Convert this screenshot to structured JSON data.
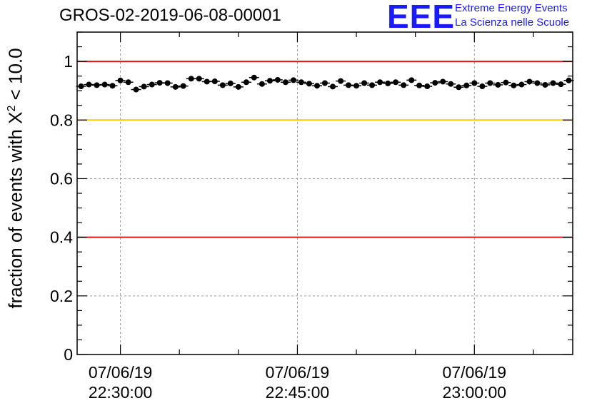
{
  "title": "GROS-02-2019-06-08-00001",
  "logo": {
    "mark": "EEE",
    "line1": "Extreme Energy Events",
    "line2": "La Scienza nelle Scuole",
    "color": "#1a1aff"
  },
  "chart_data": {
    "type": "scatter",
    "title": "GROS-02-2019-06-08-00001",
    "ylabel_prefix": "fraction of events with X",
    "ylabel_sup": "2",
    "ylabel_suffix": " < 10.0",
    "xlabel": "",
    "ylim": [
      0,
      1.1
    ],
    "xlim": [
      "07/06/19 22:26:20",
      "07/06/19 23:08:20"
    ],
    "y_major_ticks": [
      0,
      0.2,
      0.4,
      0.6,
      0.8,
      1
    ],
    "y_tick_labels": [
      "0",
      "0.2",
      "0.4",
      "0.6",
      "0.8",
      "1"
    ],
    "x_ticks": [
      {
        "date": "07/06/19",
        "time": "22:30:00",
        "minute": 30
      },
      {
        "date": "07/06/19",
        "time": "22:45:00",
        "minute": 45
      },
      {
        "date": "07/06/19",
        "time": "23:00:00",
        "minute": 60
      }
    ],
    "grid": true,
    "reference_lines": [
      {
        "y": 1.0,
        "color": "#ee1111"
      },
      {
        "y": 0.8,
        "color": "#ffcc00"
      },
      {
        "y": 0.4,
        "color": "#ee1111"
      }
    ],
    "point_color": "#000000",
    "series": [
      {
        "x": [
          26.67,
          27.33,
          28.0,
          28.67,
          29.33,
          30.0,
          30.67,
          31.33,
          32.0,
          32.67,
          33.33,
          34.0,
          34.67,
          35.33,
          36.0,
          36.67,
          37.33,
          38.0,
          38.67,
          39.33,
          40.0,
          40.67,
          41.33,
          42.0,
          42.67,
          43.33,
          44.0,
          44.67,
          45.33,
          46.0,
          46.67,
          47.33,
          48.0,
          48.67,
          49.33,
          50.0,
          50.67,
          51.33,
          52.0,
          52.67,
          53.33,
          54.0,
          54.67,
          55.33,
          56.0,
          56.67,
          57.33,
          58.0,
          58.67,
          59.33,
          60.0,
          60.67,
          61.33,
          62.0,
          62.67,
          63.33,
          64.0,
          64.67,
          65.33,
          66.0,
          66.67,
          67.33,
          68.0
        ],
        "values": [
          0.915,
          0.921,
          0.919,
          0.921,
          0.917,
          0.935,
          0.929,
          0.904,
          0.914,
          0.921,
          0.927,
          0.926,
          0.913,
          0.916,
          0.941,
          0.941,
          0.931,
          0.932,
          0.919,
          0.925,
          0.913,
          0.929,
          0.945,
          0.923,
          0.934,
          0.937,
          0.929,
          0.936,
          0.929,
          0.924,
          0.917,
          0.926,
          0.914,
          0.933,
          0.919,
          0.917,
          0.926,
          0.919,
          0.929,
          0.925,
          0.929,
          0.919,
          0.936,
          0.918,
          0.915,
          0.927,
          0.931,
          0.923,
          0.912,
          0.918,
          0.926,
          0.915,
          0.926,
          0.92,
          0.928,
          0.918,
          0.921,
          0.931,
          0.926,
          0.92,
          0.926,
          0.922,
          0.935
        ]
      }
    ]
  }
}
